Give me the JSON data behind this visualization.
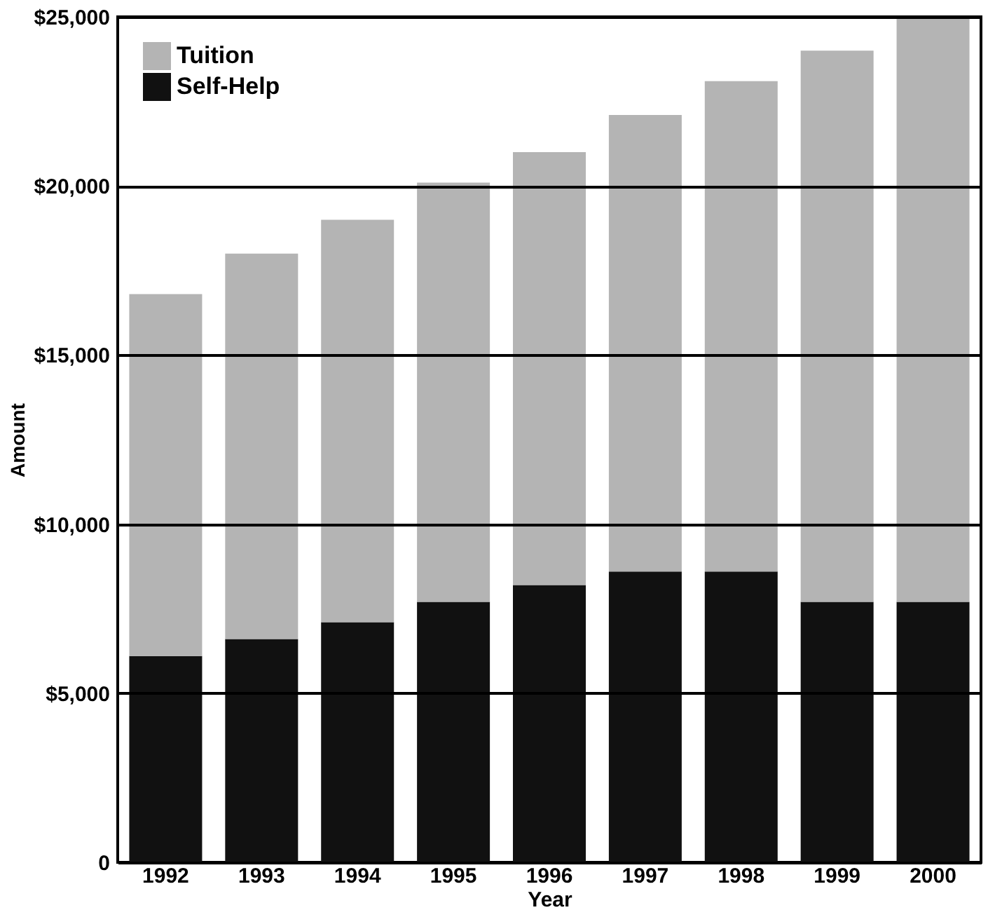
{
  "chart_data": {
    "type": "bar",
    "stacked": true,
    "xlabel": "Year",
    "ylabel": "Amount",
    "categories": [
      "1992",
      "1993",
      "1994",
      "1995",
      "1996",
      "1997",
      "1998",
      "1999",
      "2000"
    ],
    "series": [
      {
        "name": "Self-Help",
        "color": "#111111",
        "values": [
          6100,
          6600,
          7100,
          7700,
          8200,
          8600,
          8600,
          7700,
          7700
        ]
      },
      {
        "name": "Tuition",
        "color": "#b4b4b4",
        "values": [
          10700,
          11400,
          11900,
          12400,
          12800,
          13500,
          14500,
          16300,
          17300
        ]
      }
    ],
    "ylim": [
      0,
      25000
    ],
    "yticks": [
      0,
      {
        "value": 5000,
        "label": "$5,000"
      },
      {
        "value": 10000,
        "label": "$10,000"
      },
      {
        "value": 15000,
        "label": "$15,000"
      },
      {
        "value": 20000,
        "label": "$20,000"
      },
      {
        "value": 25000,
        "label": "$25,000"
      }
    ],
    "grid": "y",
    "legend": "top left"
  }
}
